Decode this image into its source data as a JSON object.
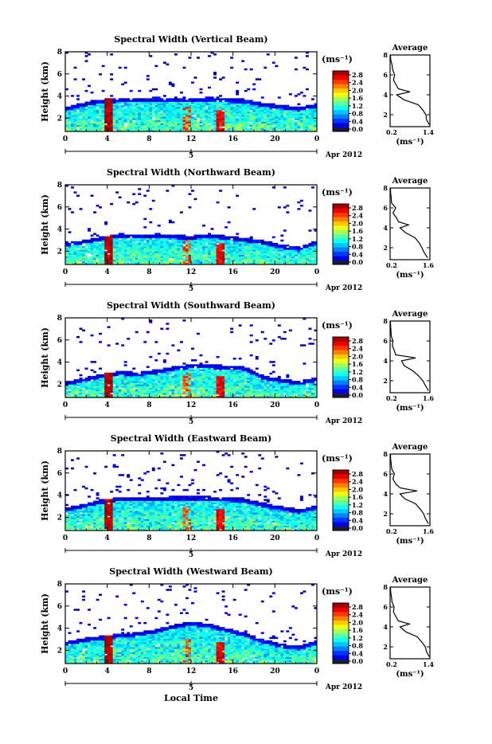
{
  "figure": {
    "xlabel": "Local Time",
    "height_label": "Height (km)",
    "colorbar_unit": "(ms⁻¹)",
    "avg_title": "Average",
    "avg_unit": "(ms⁻¹)",
    "date_day": "5",
    "date_label": "Apr 2012",
    "x_ticks": [
      "0",
      "4",
      "8",
      "12",
      "16",
      "20",
      "0"
    ],
    "y_ticks": [
      "2",
      "4",
      "6",
      "8"
    ],
    "colorbar_ticks": [
      "0.0",
      "0.4",
      "0.8",
      "1.2",
      "1.6",
      "2.0",
      "2.4",
      "2.8"
    ],
    "avg_y_ticks": [
      "2",
      "4",
      "6",
      "8"
    ]
  },
  "chart_data": [
    {
      "type": "heatmap",
      "title": "Spectral Width (Vertical Beam)",
      "x_range_hours": [
        0,
        24
      ],
      "ylim": [
        0.8,
        8
      ],
      "value_range": [
        0.0,
        2.8
      ],
      "echo_top_km": [
        3.0,
        3.4,
        3.7,
        3.8,
        3.8,
        3.9,
        3.8,
        3.8,
        3.9,
        3.8,
        3.7,
        3.4,
        3.2,
        3.0,
        3.3
      ],
      "average_profile": {
        "xlim": [
          0.2,
          1.4
        ],
        "x_ticks": [
          "0.2",
          "1.4"
        ],
        "height_km": [
          1.0,
          1.5,
          2.0,
          2.5,
          3.0,
          3.5,
          4.0,
          4.3,
          4.6,
          5.0,
          5.5,
          6.0,
          6.5,
          7.0,
          7.5,
          8.0
        ],
        "width": [
          1.38,
          1.3,
          1.28,
          1.18,
          1.05,
          0.62,
          0.4,
          0.8,
          0.45,
          0.38,
          0.3,
          0.34,
          0.28,
          0.26,
          0.22,
          0.21
        ]
      }
    },
    {
      "type": "heatmap",
      "title": "Spectral Width (Northward Beam)",
      "x_range_hours": [
        0,
        24
      ],
      "ylim": [
        0.8,
        8
      ],
      "value_range": [
        0.0,
        2.8
      ],
      "echo_top_km": [
        2.8,
        3.0,
        3.3,
        3.6,
        3.5,
        3.6,
        3.5,
        3.4,
        3.6,
        3.4,
        3.2,
        3.0,
        2.6,
        2.4,
        3.0
      ],
      "average_profile": {
        "xlim": [
          0.2,
          1.6
        ],
        "x_ticks": [
          "0.2",
          "1.6"
        ],
        "height_km": [
          1.0,
          1.5,
          2.0,
          2.5,
          3.0,
          3.5,
          4.0,
          4.3,
          4.6,
          5.0,
          5.5,
          6.0,
          6.5,
          7.0,
          7.5,
          8.0
        ],
        "width": [
          1.52,
          1.4,
          1.32,
          1.22,
          1.08,
          0.75,
          0.55,
          0.85,
          0.5,
          0.42,
          0.3,
          0.4,
          0.25,
          0.24,
          0.22,
          0.21
        ]
      }
    },
    {
      "type": "heatmap",
      "title": "Spectral Width (Southward Beam)",
      "x_range_hours": [
        0,
        24
      ],
      "ylim": [
        0.8,
        8
      ],
      "value_range": [
        0.0,
        2.8
      ],
      "echo_top_km": [
        2.2,
        2.6,
        2.9,
        3.2,
        3.1,
        3.3,
        3.6,
        3.8,
        3.8,
        3.7,
        3.6,
        2.8,
        2.5,
        2.3,
        2.6
      ],
      "average_profile": {
        "xlim": [
          0.2,
          1.6
        ],
        "x_ticks": [
          "0.2",
          "1.6"
        ],
        "height_km": [
          1.0,
          1.5,
          2.0,
          2.5,
          3.0,
          3.5,
          4.0,
          4.3,
          4.6,
          5.0,
          5.5,
          6.0,
          6.5,
          7.0,
          7.5,
          8.0
        ],
        "width": [
          1.55,
          1.45,
          1.35,
          1.2,
          1.0,
          0.7,
          0.6,
          1.1,
          0.4,
          0.35,
          0.28,
          0.3,
          0.24,
          0.23,
          0.22,
          0.21
        ]
      }
    },
    {
      "type": "heatmap",
      "title": "Spectral Width (Eastward Beam)",
      "x_range_hours": [
        0,
        24
      ],
      "ylim": [
        0.8,
        8
      ],
      "value_range": [
        0.0,
        2.8
      ],
      "echo_top_km": [
        2.9,
        3.2,
        3.6,
        3.8,
        3.8,
        3.8,
        3.9,
        3.9,
        3.9,
        3.8,
        3.7,
        3.3,
        3.0,
        2.7,
        3.1
      ],
      "average_profile": {
        "xlim": [
          0.2,
          1.6
        ],
        "x_ticks": [
          "0.2",
          "1.6"
        ],
        "height_km": [
          1.0,
          1.5,
          2.0,
          2.5,
          3.0,
          3.5,
          4.0,
          4.3,
          4.6,
          5.0,
          5.5,
          6.0,
          6.5,
          7.0,
          7.5,
          8.0
        ],
        "width": [
          1.55,
          1.45,
          1.38,
          1.25,
          1.1,
          0.72,
          0.55,
          1.15,
          0.55,
          0.4,
          0.3,
          0.35,
          0.26,
          0.24,
          0.22,
          0.21
        ]
      }
    },
    {
      "type": "heatmap",
      "title": "Spectral Width (Westward Beam)",
      "x_range_hours": [
        0,
        24
      ],
      "ylim": [
        0.8,
        8
      ],
      "value_range": [
        0.0,
        2.8
      ],
      "echo_top_km": [
        2.8,
        3.1,
        3.3,
        3.5,
        3.6,
        3.9,
        4.3,
        4.6,
        4.4,
        4.0,
        3.6,
        3.0,
        2.6,
        2.4,
        2.9
      ],
      "average_profile": {
        "xlim": [
          0.2,
          1.4
        ],
        "x_ticks": [
          "0.2",
          "1.4"
        ],
        "height_km": [
          1.0,
          1.5,
          2.0,
          2.5,
          3.0,
          3.5,
          4.0,
          4.3,
          4.6,
          5.0,
          5.5,
          6.0,
          6.5,
          7.0,
          7.5,
          8.0
        ],
        "width": [
          1.38,
          1.3,
          1.26,
          1.15,
          1.02,
          0.68,
          0.5,
          0.78,
          0.45,
          0.38,
          0.3,
          0.32,
          0.26,
          0.24,
          0.22,
          0.21
        ]
      }
    }
  ]
}
